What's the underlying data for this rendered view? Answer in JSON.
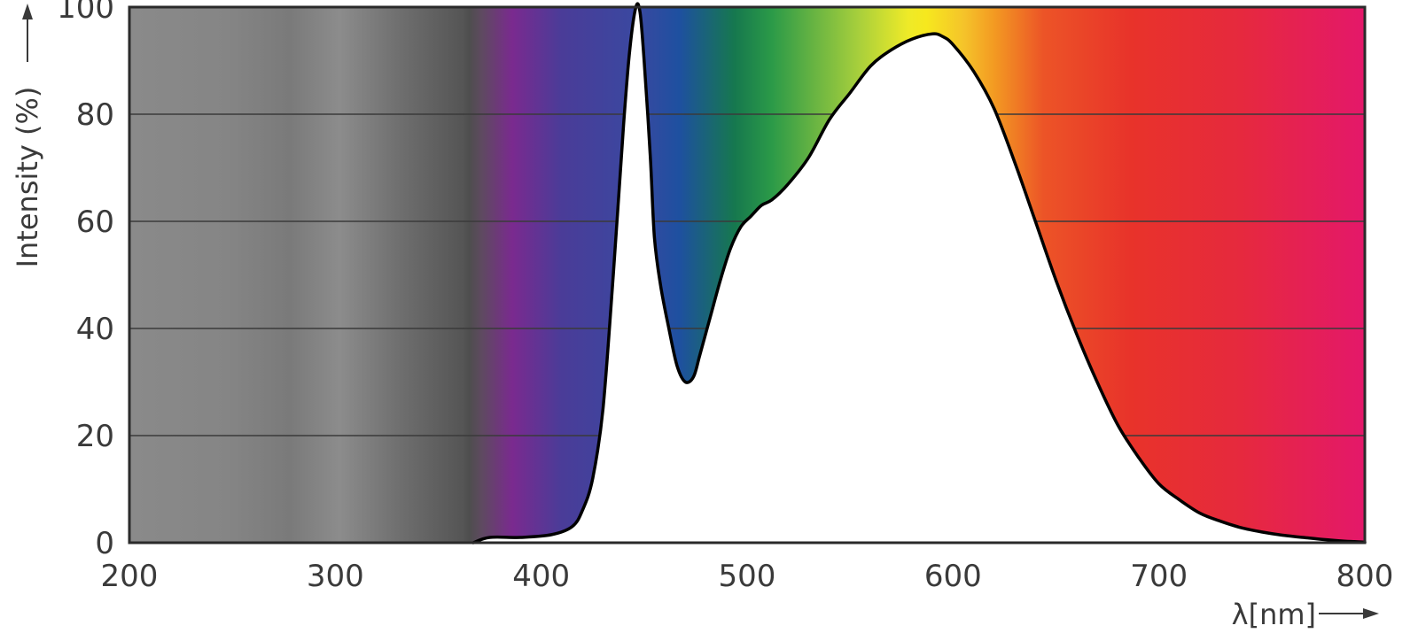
{
  "chart_data": {
    "type": "area",
    "xlabel": "λ[nm]",
    "ylabel": "Intensity (%)",
    "xlim": [
      200,
      800
    ],
    "ylim": [
      0,
      100
    ],
    "x_ticks": [
      200,
      300,
      400,
      500,
      600,
      700,
      800
    ],
    "y_ticks": [
      0,
      20,
      40,
      60,
      80,
      100
    ],
    "grid": true,
    "background": "visible-spectrum color gradient (gray for UV, violet → blue → green → yellow → orange → red)",
    "colors": {
      "uv_gray": "#8a8a8a",
      "violet": "#7a2a8f",
      "blue": "#1e50a0",
      "green": "#1a8c45",
      "yellow": "#f4ea1e",
      "orange": "#f39a22",
      "red": "#e8332a",
      "magenta": "#e4186a",
      "curve": "#000000",
      "fill": "#ffffff"
    },
    "series": [
      {
        "x": [
          367,
          375,
          390,
          405,
          415,
          420,
          425,
          430,
          435,
          440,
          443,
          446,
          448,
          450,
          453,
          455,
          458,
          462,
          466,
          470,
          474,
          477,
          482,
          487,
          492,
          497,
          502,
          507,
          512,
          520,
          530,
          540,
          550,
          560,
          570,
          580,
          590,
          595,
          600,
          610,
          620,
          630,
          640,
          650,
          660,
          670,
          680,
          690,
          700,
          710,
          720,
          730,
          740,
          750,
          760,
          770,
          780,
          790,
          795,
          800
        ],
        "values": [
          0,
          1,
          1,
          1.5,
          3,
          6,
          12,
          25,
          50,
          78,
          92,
          100,
          99,
          90,
          72,
          57,
          48,
          40,
          33,
          30,
          31,
          35,
          42,
          49,
          55,
          59,
          61,
          63,
          64,
          67,
          72,
          79,
          84,
          89,
          92,
          94,
          95,
          94.5,
          93,
          88,
          81,
          71,
          60,
          49,
          39,
          30,
          22,
          16,
          11,
          8,
          5.5,
          4,
          2.8,
          2,
          1.4,
          1,
          0.6,
          0.3,
          0.2,
          0.1
        ]
      }
    ]
  }
}
